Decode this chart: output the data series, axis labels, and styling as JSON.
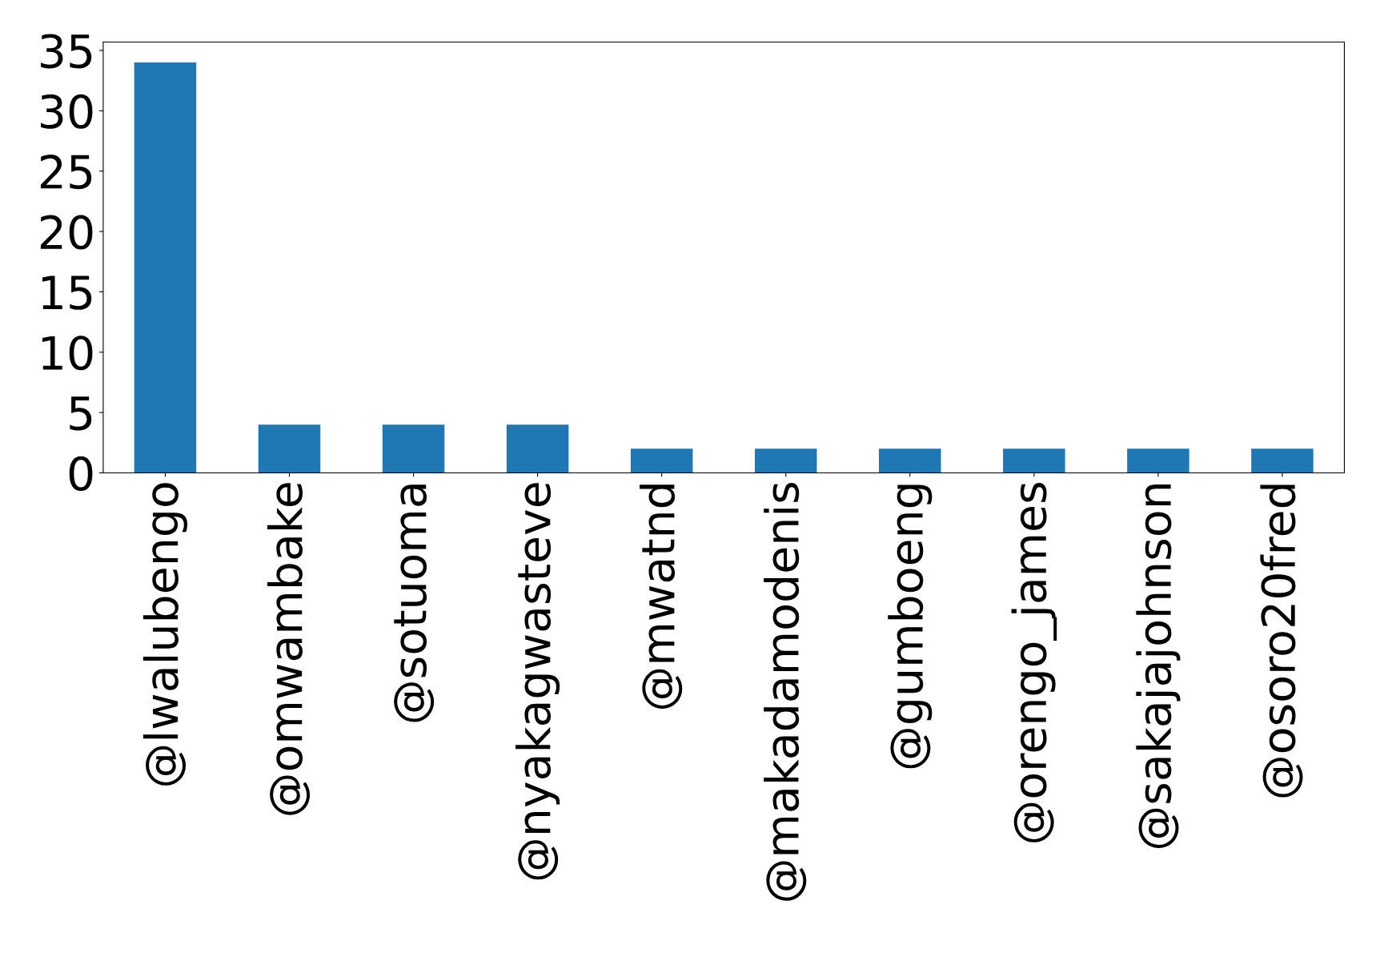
{
  "chart_data": {
    "type": "bar",
    "categories": [
      "@lwalubengo",
      "@omwambake",
      "@sotuoma",
      "@nyakagwasteve",
      "@mwatnd",
      "@makadamodenis",
      "@gumboeng",
      "@orengo_james",
      "@sakajajohnson",
      "@osoro20fred"
    ],
    "values": [
      34,
      4,
      4,
      4,
      2,
      2,
      2,
      2,
      2,
      2
    ],
    "color": "#1f77b4",
    "ylim": [
      0,
      35.7
    ],
    "yticks": [
      0,
      5,
      10,
      15,
      20,
      25,
      30,
      35
    ],
    "grid": false
  }
}
